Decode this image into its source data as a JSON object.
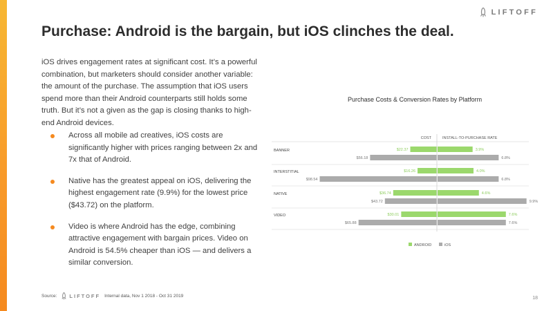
{
  "brand": {
    "logo_text": "LIFTOFF"
  },
  "slide": {
    "title": "Purchase: Android is the bargain, but iOS clinches the deal.",
    "intro": "iOS drives engagement rates at significant cost. It’s a powerful combination, but marketers should consider another variable: the amount of the purchase. The assumption that iOS users spend more than their Android counterparts still holds some truth. But it’s not a given as the gap is closing thanks to high-end Android devices.",
    "bullets": [
      "Across all mobile ad creatives, iOS costs are significantly higher with prices ranging between 2x and 7x that of Android.",
      "Native has the greatest appeal on iOS, delivering the highest engagement rate (9.9%) for the lowest price ($43.72) on the platform.",
      "Video is where Android has the edge, combining attractive engagement with bargain prices. Video on Android is 54.5% cheaper than iOS — and delivers a similar conversion."
    ],
    "footer": {
      "source_label": "Source:",
      "source_text": "Internal data, Nov 1 2018 - Oct 31 2019"
    },
    "page_number": "18"
  },
  "chart_data": {
    "type": "bar",
    "title": "Purchase Costs & Conversion Rates by Platform",
    "left_axis_label": "COST",
    "right_axis_label": "INSTALL-TO-PURCHASE RATE",
    "categories": [
      "BANNER",
      "INTERSTITIAL",
      "NATIVE",
      "VIDEO"
    ],
    "cost": {
      "series": [
        {
          "name": "ANDROID",
          "values": [
            22.37,
            16.26,
            36.74,
            30.01
          ],
          "labels": [
            "$22.37",
            "$16.26",
            "$36.74",
            "$30.01"
          ]
        },
        {
          "name": "iOS",
          "values": [
            56.18,
            98.54,
            43.72,
            65.88
          ],
          "labels": [
            "$56.18",
            "$98.54",
            "$43.72",
            "$65.88"
          ]
        }
      ]
    },
    "rate": {
      "series": [
        {
          "name": "ANDROID",
          "values": [
            3.9,
            4.0,
            4.6,
            7.6
          ],
          "labels": [
            "3.9%",
            "4.0%",
            "4.6%",
            "7.6%"
          ]
        },
        {
          "name": "iOS",
          "values": [
            6.8,
            6.8,
            9.9,
            7.6
          ],
          "labels": [
            "6.8%",
            "6.8%",
            "9.9%",
            "7.6%"
          ]
        }
      ]
    },
    "legend": [
      "ANDROID",
      "iOS"
    ],
    "colors": {
      "android": "#9bd86c",
      "ios": "#ababab",
      "android_text": "#8ccc5c",
      "ios_text": "#777777"
    }
  }
}
